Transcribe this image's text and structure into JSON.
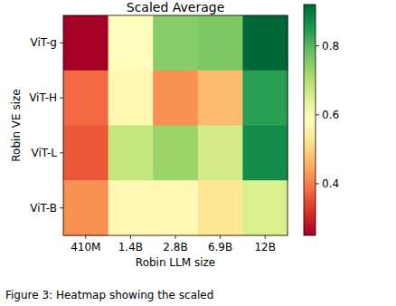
{
  "chart_data": {
    "type": "heatmap",
    "title": "Scaled Average",
    "x_label": "Robin LLM size",
    "y_label": "Robin VE size",
    "categories": [
      "410M",
      "1.4B",
      "2.8B",
      "6.9B",
      "12B"
    ],
    "y_categories": [
      "ViT-g",
      "ViT-H",
      "ViT-L",
      "ViT-B"
    ],
    "cells": [
      [
        0.25,
        0.58,
        0.75,
        0.76,
        0.93
      ],
      [
        0.38,
        0.57,
        0.42,
        0.47,
        0.84
      ],
      [
        0.36,
        0.68,
        0.73,
        0.66,
        0.87
      ],
      [
        0.42,
        0.57,
        0.57,
        0.53,
        0.65
      ]
    ],
    "colorbar": {
      "range": [
        0.25,
        0.92
      ],
      "ticks": [
        0.4,
        0.6,
        0.8
      ]
    }
  },
  "caption": "Figure 3: Heatmap showing the scaled"
}
